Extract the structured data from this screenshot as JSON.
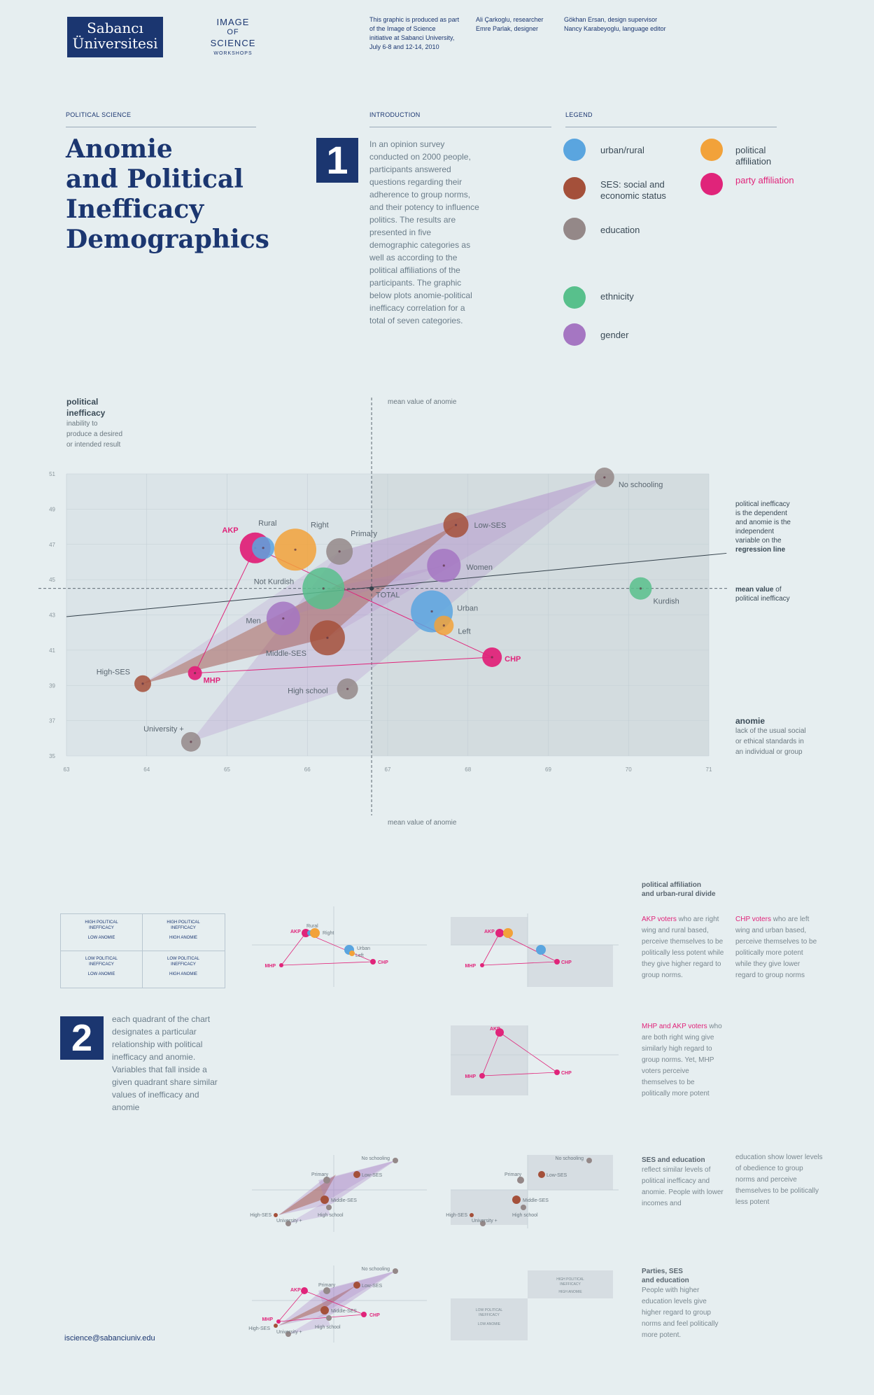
{
  "header": {
    "logo_line1": "Sabancı",
    "logo_line2": "Üniversitesi",
    "ios_line1": "IMAGE",
    "ios_line2": "OF",
    "ios_line3": "SCIENCE",
    "ios_line4": "WORKSHOPS",
    "credit1": [
      "This graphic is produced as part",
      "of the Image of Science",
      "initiative at Sabanci University,",
      "July 6-8 and 12-14, 2010"
    ],
    "credit2": [
      "Ali Çarkoglu, researcher",
      "Emre Parlak, designer"
    ],
    "credit3": [
      "Gökhan Ersan, design supervisor",
      "Nancy Karabeyoglu, language editor"
    ]
  },
  "section": {
    "political_science": "POLITICAL SCIENCE",
    "introduction": "INTRODUCTION",
    "legend": "LEGEND"
  },
  "title": [
    "Anomie",
    "and Political",
    "Inefficacy",
    "Demographics"
  ],
  "intro_number": "1",
  "intro_text": "In an opinion survey conducted on 2000 people, participants answered questions regarding their adherence to group norms, and their potency to influence politics. The results are presented in five demographic categories as well as according to the political affiliations of the participants. The graphic below plots anomie-political inefficacy correlation for a total of seven categories.",
  "legend": [
    {
      "label": "urban/rural",
      "color": "#5aa5df"
    },
    {
      "label": "SES: social and economic status",
      "color": "#a4503a"
    },
    {
      "label": "education",
      "color": "#948888"
    },
    {
      "label": "ethnicity",
      "color": "#58c08c"
    },
    {
      "label": "gender",
      "color": "#a576c2"
    },
    {
      "label": "political affiliation",
      "color": "#f2a23a"
    },
    {
      "label": "party affiliation",
      "color": "#e0247a"
    }
  ],
  "axes": {
    "y_title": "political inefficacy",
    "y_sub": [
      "inability to",
      "produce a desired",
      "or intended result"
    ],
    "mean_anomie": "mean value of anomie",
    "x_title": "anomie",
    "x_sub": [
      "lack of the usual social",
      "or ethical standards in",
      "an individual or group"
    ],
    "regression_note": [
      "political inefficacy",
      "is the dependent",
      "and anomie is the",
      "independent",
      "variable on the"
    ],
    "regression_bold": "regression line",
    "mean_ineff_bold": "mean value",
    "mean_ineff_rest": " of",
    "mean_ineff_line2": "political inefficacy"
  },
  "chart_data": {
    "type": "scatter",
    "title": "Anomie and Political Inefficacy Demographics",
    "xlabel": "anomie",
    "ylabel": "political inefficacy",
    "xlim": [
      63,
      71
    ],
    "ylim": [
      35,
      51
    ],
    "x_ticks": [
      63,
      64,
      65,
      66,
      67,
      68,
      69,
      70,
      71
    ],
    "y_ticks": [
      35,
      37,
      39,
      41,
      43,
      45,
      47,
      49,
      51
    ],
    "mean_anomie": 66.8,
    "mean_inefficacy": 44.5,
    "regression": [
      [
        63,
        42.9
      ],
      [
        71,
        46.4
      ]
    ],
    "points": [
      {
        "label": "No schooling",
        "category": "education",
        "x": 69.7,
        "y": 50.8,
        "size": 14
      },
      {
        "label": "Low-SES",
        "category": "ses",
        "x": 67.85,
        "y": 48.1,
        "size": 18
      },
      {
        "label": "Primary",
        "category": "education",
        "x": 66.4,
        "y": 46.6,
        "size": 19
      },
      {
        "label": "Right",
        "category": "political",
        "x": 65.85,
        "y": 46.7,
        "size": 30
      },
      {
        "label": "Rural",
        "category": "urban",
        "x": 65.45,
        "y": 46.8,
        "size": 16
      },
      {
        "label": "AKP",
        "category": "party",
        "x": 65.35,
        "y": 46.8,
        "size": 22
      },
      {
        "label": "Women",
        "category": "gender",
        "x": 67.7,
        "y": 45.8,
        "size": 24
      },
      {
        "label": "Not Kurdish",
        "category": "ethnicity",
        "x": 66.2,
        "y": 44.5,
        "size": 30
      },
      {
        "label": "Kurdish",
        "category": "ethnicity",
        "x": 70.15,
        "y": 44.5,
        "size": 16
      },
      {
        "label": "Urban",
        "category": "urban",
        "x": 67.55,
        "y": 43.2,
        "size": 30
      },
      {
        "label": "Men",
        "category": "gender",
        "x": 65.7,
        "y": 42.8,
        "size": 24
      },
      {
        "label": "Left",
        "category": "political",
        "x": 67.7,
        "y": 42.4,
        "size": 14
      },
      {
        "label": "Middle-SES",
        "category": "ses",
        "x": 66.25,
        "y": 41.7,
        "size": 25
      },
      {
        "label": "CHP",
        "category": "party",
        "x": 68.3,
        "y": 40.6,
        "size": 14
      },
      {
        "label": "MHP",
        "category": "party",
        "x": 64.6,
        "y": 39.7,
        "size": 10
      },
      {
        "label": "High-SES",
        "category": "ses",
        "x": 63.95,
        "y": 39.1,
        "size": 12
      },
      {
        "label": "High school",
        "category": "education",
        "x": 66.5,
        "y": 38.8,
        "size": 15
      },
      {
        "label": "University +",
        "category": "education",
        "x": 64.55,
        "y": 35.8,
        "size": 14
      }
    ],
    "total_label": "TOTAL",
    "total_point": {
      "x": 66.8,
      "y": 44.5
    }
  },
  "quadrants": {
    "q1": [
      "HIGH POLITICAL",
      "INEFFICACY",
      "LOW ANOMIE"
    ],
    "q2": [
      "HIGH POLITICAL",
      "INEFFICACY",
      "HIGH ANOMIE"
    ],
    "q3": [
      "LOW POLITICAL",
      "INEFFICACY",
      "LOW ANOMIE"
    ],
    "q4": [
      "LOW POLITICAL",
      "INEFFICACY",
      "HIGH ANOMIE"
    ]
  },
  "section2_number": "2",
  "section2_text": "each quadrant of the chart designates a particular relationship with political inefficacy and anomie. Variables that fall inside a given quadrant share similar values of inefficacy and anomie",
  "mini_notes": {
    "n1_head": [
      "political affiliation",
      "and urban-rural divide"
    ],
    "n1_akp_lead": "AKP voters",
    "n1_akp_rest": " who are right wing and rural based, perceive themselves to be politically less potent while they give higher regard to group norms.",
    "n1_chp_lead": "CHP voters",
    "n1_chp_rest": " who are left wing and urban based, perceive themselves to be politically more potent while they give lower regard to group norms",
    "n2_lead": "MHP and AKP voters",
    "n2_rest": " who are both right wing give similarly high regard to group norms. Yet, MHP voters perceive themselves to be politically more potent",
    "n3_head": [
      "SES and education"
    ],
    "n3_text": "reflect similar levels of political inefficacy and anomie. People with lower incomes and",
    "n3_text2": "education show lower levels of obedience to group norms and perceive themselves to be politically less potent",
    "n4_head": [
      "Parties, SES",
      "and education"
    ],
    "n4_text": "People with higher education levels give higher regard to group norms and feel politically more potent."
  },
  "mini_labels": {
    "akp": "AKP",
    "rural": "Rural",
    "right": "Right",
    "urban": "Urban",
    "left": "Left",
    "mhp": "MHP",
    "chp": "CHP",
    "no_schooling": "No schooling",
    "primary": "Primary",
    "low_ses": "Low-SES",
    "middle_ses": "Middle-SES",
    "high_ses": "High-SES",
    "university": "University +",
    "high_school": "High school",
    "hpi": [
      "HIGH POLITICAL",
      "INEFFICACY",
      "HIGH ANOMIE"
    ],
    "lpi": [
      "LOW POLITICAL",
      "INEFFICACY",
      "LOW ANOMIE"
    ]
  },
  "footer_email": "iscience@sabanciuniv.edu",
  "colors": {
    "navy": "#1b3670",
    "urban": "#5aa5df",
    "ses": "#a4503a",
    "education": "#948888",
    "ethnicity": "#58c08c",
    "gender": "#a576c2",
    "political": "#f2a23a",
    "party": "#e0247a"
  }
}
